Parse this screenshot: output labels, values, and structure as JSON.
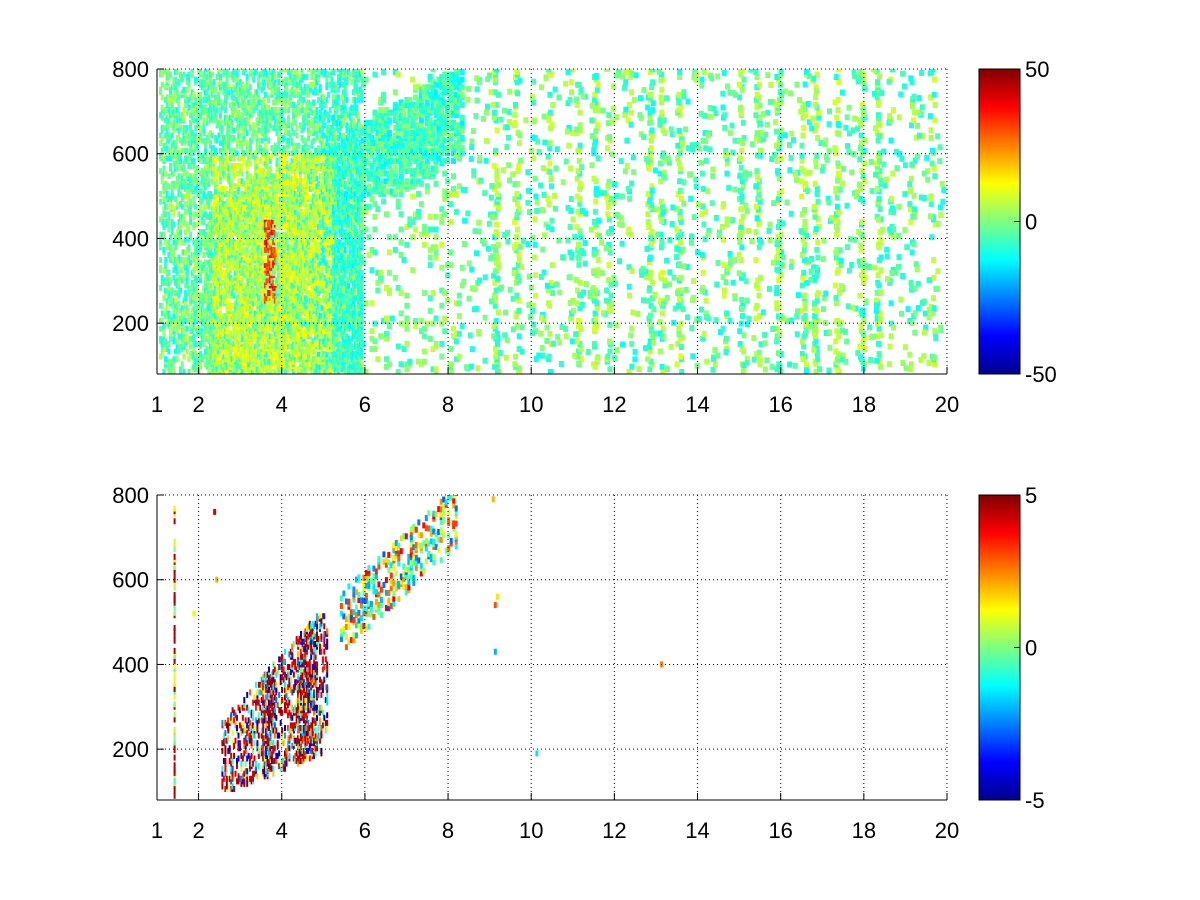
{
  "chart_data": [
    {
      "type": "heatmap",
      "title": "",
      "xlabel": "",
      "ylabel": "",
      "xlim": [
        1,
        20
      ],
      "ylim": [
        80,
        800
      ],
      "x_ticks": [
        "1",
        "2",
        "4",
        "6",
        "8",
        "10",
        "12",
        "14",
        "16",
        "18",
        "20"
      ],
      "y_ticks": [
        "200",
        "400",
        "600",
        "800"
      ],
      "grid": true,
      "colormap": "jet",
      "colorbar": {
        "min": -50,
        "max": 50,
        "tick_labels": [
          "50",
          "0",
          "-50"
        ]
      },
      "regions": [
        {
          "x": [
            3.6,
            3.8
          ],
          "y": [
            250,
            450
          ],
          "value_range": [
            25,
            40
          ]
        },
        {
          "x": [
            2.2,
            5.8
          ],
          "y": [
            90,
            600
          ],
          "value_range": [
            0,
            15
          ]
        },
        {
          "x": [
            1.0,
            20.0
          ],
          "y": [
            80,
            800
          ],
          "value_range": [
            -15,
            8
          ]
        }
      ]
    },
    {
      "type": "heatmap",
      "title": "",
      "xlabel": "",
      "ylabel": "",
      "xlim": [
        1,
        20
      ],
      "ylim": [
        80,
        800
      ],
      "x_ticks": [
        "1",
        "2",
        "4",
        "6",
        "8",
        "10",
        "12",
        "14",
        "16",
        "18",
        "20"
      ],
      "y_ticks": [
        "200",
        "400",
        "600",
        "800"
      ],
      "grid": true,
      "colormap": "jet",
      "colorbar": {
        "min": -5,
        "max": 5,
        "tick_labels": [
          "5",
          "0",
          "-5"
        ]
      },
      "regions": [
        {
          "x": [
            2.6,
            5.0
          ],
          "y": [
            100,
            500
          ],
          "value_range": [
            -5,
            5
          ]
        },
        {
          "x": [
            5.4,
            8.2
          ],
          "y": [
            500,
            780
          ],
          "value_range": [
            -2,
            3
          ]
        },
        {
          "x": [
            9.0,
            9.2
          ],
          "y": [
            420,
            560
          ],
          "value_range": [
            -2,
            2
          ]
        }
      ]
    }
  ]
}
